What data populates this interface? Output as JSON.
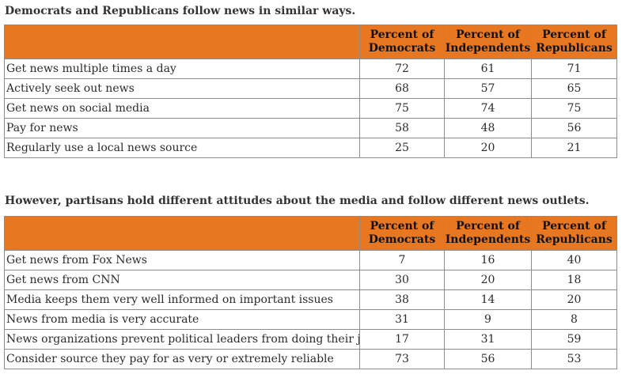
{
  "caption_1": "Democrats and Republicans follow news in similar ways.",
  "caption_2": "However, partisans hold different attitudes about the media and follow different news outlets.",
  "header": {
    "dem_1": "Percent of",
    "dem_2": "Democrats",
    "ind_1": "Percent of",
    "ind_2": "Independents",
    "rep_1": "Percent of",
    "rep_2": "Republicans"
  },
  "table_1": {
    "rows": [
      {
        "label": "Get news multiple times a day",
        "dem": "72",
        "ind": "61",
        "rep": "71"
      },
      {
        "label": "Actively seek out news",
        "dem": "68",
        "ind": "57",
        "rep": "65"
      },
      {
        "label": "Get news on social media",
        "dem": "75",
        "ind": "74",
        "rep": "75"
      },
      {
        "label": "Pay for news",
        "dem": "58",
        "ind": "48",
        "rep": "56"
      },
      {
        "label": "Regularly use a local news source",
        "dem": "25",
        "ind": "20",
        "rep": "21"
      }
    ]
  },
  "table_2": {
    "rows": [
      {
        "label": "Get news from Fox News",
        "dem": "7",
        "ind": "16",
        "rep": "40"
      },
      {
        "label": "Get news from CNN",
        "dem": "30",
        "ind": "20",
        "rep": "18"
      },
      {
        "label": "Media keeps them very well informed on important issues",
        "dem": "38",
        "ind": "14",
        "rep": "20"
      },
      {
        "label": "News from media is very accurate",
        "dem": "31",
        "ind": "9",
        "rep": "8"
      },
      {
        "label": "News organizations prevent political leaders from doing their job",
        "dem": "17",
        "ind": "31",
        "rep": "59"
      },
      {
        "label": "Consider source they pay for as very or extremely reliable",
        "dem": "73",
        "ind": "56",
        "rep": "53"
      }
    ]
  },
  "colors": {
    "header_background": "#e87722",
    "border": "#8c8c8c",
    "text": "#2b2b2b"
  }
}
